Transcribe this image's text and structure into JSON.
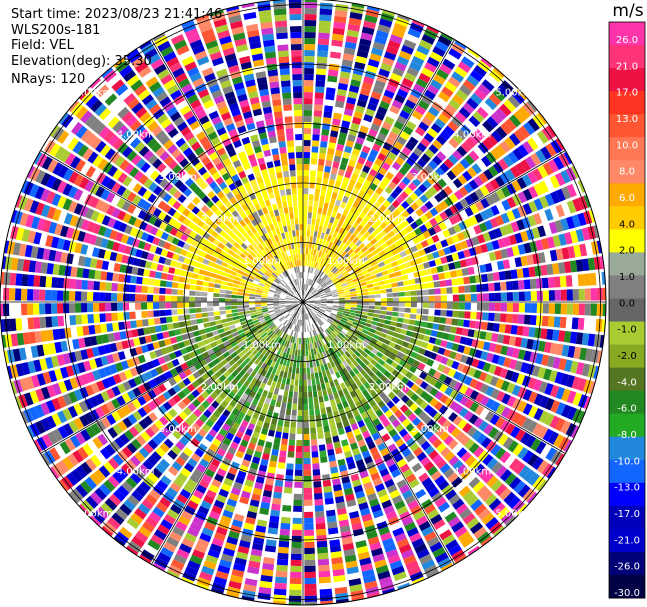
{
  "header": {
    "start_time": "Start time: 2023/08/23 21:41:46",
    "station": "WLS200s-181",
    "field": "Field: VEL",
    "elevation": "Elevation(deg): 35.30",
    "nrays": "NRays: 120"
  },
  "colorbar": {
    "unit": "m/s",
    "ticks": [
      "26.0",
      "21.0",
      "17.0",
      "13.0",
      "10.0",
      "8.0",
      "6.0",
      "4.0",
      "2.0",
      "1.0",
      "0.0",
      "-1.0",
      "-2.0",
      "-4.0",
      "-6.0",
      "-8.0",
      "-10.0",
      "-13.0",
      "-17.0",
      "-21.0",
      "-26.0",
      "-30.0"
    ],
    "colors": [
      "#ff33aa",
      "#ff3377",
      "#ee1144",
      "#ff3322",
      "#ff5533",
      "#ff7755",
      "#ff8866",
      "#ffaa00",
      "#ffcc00",
      "#ffff00",
      "#99aa99",
      "#808080",
      "#666666",
      "#aacc33",
      "#88aa22",
      "#557722",
      "#228822",
      "#22aa22",
      "#2288dd",
      "#1166ff",
      "#0000ff",
      "#0000bb",
      "#0000cc",
      "#000077",
      "#000044"
    ]
  },
  "range_labels": [
    "1.00km",
    "2.00km",
    "3.00km",
    "4.00km",
    "5.00km"
  ]
}
